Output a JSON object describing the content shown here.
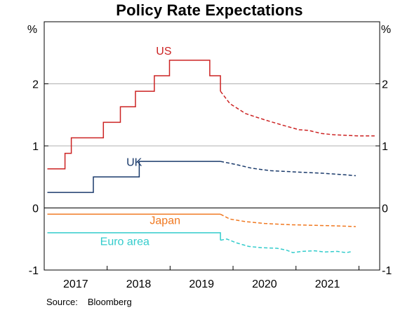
{
  "chart_data": {
    "type": "line",
    "title": "Policy Rate Expectations",
    "y_unit_left": "%",
    "y_unit_right": "%",
    "ylim": [
      -1,
      3
    ],
    "y_ticks": [
      {
        "value": -1,
        "label": "-1"
      },
      {
        "value": 0,
        "label": "0"
      },
      {
        "value": 1,
        "label": "1"
      },
      {
        "value": 2,
        "label": "2"
      }
    ],
    "xlim": [
      2016.5,
      2021.83
    ],
    "x_ticks": [
      {
        "value": 2017.0,
        "label": "2017"
      },
      {
        "value": 2018.0,
        "label": "2018"
      },
      {
        "value": 2019.0,
        "label": "2019"
      },
      {
        "value": 2020.0,
        "label": "2020"
      },
      {
        "value": 2021.0,
        "label": "2021"
      }
    ],
    "x_year_dividers": [
      2017.5,
      2018.5,
      2019.5,
      2020.5,
      2021.5
    ],
    "grid": "horizontal",
    "panel_divider_at": 0,
    "series": [
      {
        "name": "US",
        "color": "#cc2222",
        "step": true,
        "actual": [
          [
            2016.55,
            0.63
          ],
          [
            2016.83,
            0.63
          ],
          [
            2016.83,
            0.88
          ],
          [
            2016.93,
            0.88
          ],
          [
            2016.93,
            1.13
          ],
          [
            2017.44,
            1.13
          ],
          [
            2017.44,
            1.38
          ],
          [
            2017.71,
            1.38
          ],
          [
            2017.71,
            1.63
          ],
          [
            2017.95,
            1.63
          ],
          [
            2017.95,
            1.88
          ],
          [
            2018.25,
            1.88
          ],
          [
            2018.25,
            2.13
          ],
          [
            2018.49,
            2.13
          ],
          [
            2018.49,
            2.38
          ],
          [
            2019.13,
            2.38
          ],
          [
            2019.13,
            2.13
          ],
          [
            2019.3,
            2.13
          ],
          [
            2019.3,
            1.88
          ]
        ],
        "expected": [
          [
            2019.3,
            1.88
          ],
          [
            2019.45,
            1.68
          ],
          [
            2019.7,
            1.52
          ],
          [
            2020.0,
            1.42
          ],
          [
            2020.3,
            1.33
          ],
          [
            2020.55,
            1.26
          ],
          [
            2020.7,
            1.25
          ],
          [
            2020.9,
            1.2
          ],
          [
            2021.1,
            1.18
          ],
          [
            2021.3,
            1.17
          ],
          [
            2021.5,
            1.16
          ],
          [
            2021.75,
            1.16
          ]
        ]
      },
      {
        "name": "UK",
        "color": "#1a3a6b",
        "step": true,
        "actual": [
          [
            2016.55,
            0.25
          ],
          [
            2017.28,
            0.25
          ],
          [
            2017.28,
            0.5
          ],
          [
            2018.01,
            0.5
          ],
          [
            2018.01,
            0.75
          ],
          [
            2019.3,
            0.75
          ]
        ],
        "expected": [
          [
            2019.3,
            0.75
          ],
          [
            2019.55,
            0.7
          ],
          [
            2019.8,
            0.64
          ],
          [
            2020.1,
            0.6
          ],
          [
            2020.5,
            0.58
          ],
          [
            2020.9,
            0.56
          ],
          [
            2021.2,
            0.54
          ],
          [
            2021.45,
            0.52
          ]
        ]
      },
      {
        "name": "Japan",
        "color": "#f07820",
        "step": false,
        "actual": [
          [
            2016.55,
            -0.1
          ],
          [
            2019.3,
            -0.1
          ]
        ],
        "expected": [
          [
            2019.3,
            -0.1
          ],
          [
            2019.45,
            -0.18
          ],
          [
            2019.7,
            -0.22
          ],
          [
            2020.0,
            -0.25
          ],
          [
            2020.4,
            -0.27
          ],
          [
            2020.8,
            -0.28
          ],
          [
            2021.2,
            -0.29
          ],
          [
            2021.45,
            -0.3
          ]
        ]
      },
      {
        "name": "Euro area",
        "color": "#33cccc",
        "step": false,
        "actual": [
          [
            2016.55,
            -0.4
          ],
          [
            2019.3,
            -0.4
          ],
          [
            2019.3,
            -0.52
          ]
        ],
        "expected": [
          [
            2019.3,
            -0.52
          ],
          [
            2019.4,
            -0.5
          ],
          [
            2019.55,
            -0.56
          ],
          [
            2019.75,
            -0.62
          ],
          [
            2019.95,
            -0.64
          ],
          [
            2020.2,
            -0.65
          ],
          [
            2020.35,
            -0.68
          ],
          [
            2020.45,
            -0.72
          ],
          [
            2020.6,
            -0.7
          ],
          [
            2020.8,
            -0.69
          ],
          [
            2020.95,
            -0.71
          ],
          [
            2021.15,
            -0.7
          ],
          [
            2021.3,
            -0.72
          ],
          [
            2021.4,
            -0.7
          ]
        ]
      }
    ],
    "series_labels": [
      {
        "text": "US",
        "x": 2018.4,
        "y": 2.47
      },
      {
        "text": "UK",
        "x": 2017.93,
        "y": 0.68
      },
      {
        "text": "Japan",
        "x": 2018.42,
        "y": -0.26
      },
      {
        "text": "Euro area",
        "x": 2017.78,
        "y": -0.6
      }
    ]
  },
  "footer": {
    "source_label": "Source:",
    "source_value": "Bloomberg"
  }
}
